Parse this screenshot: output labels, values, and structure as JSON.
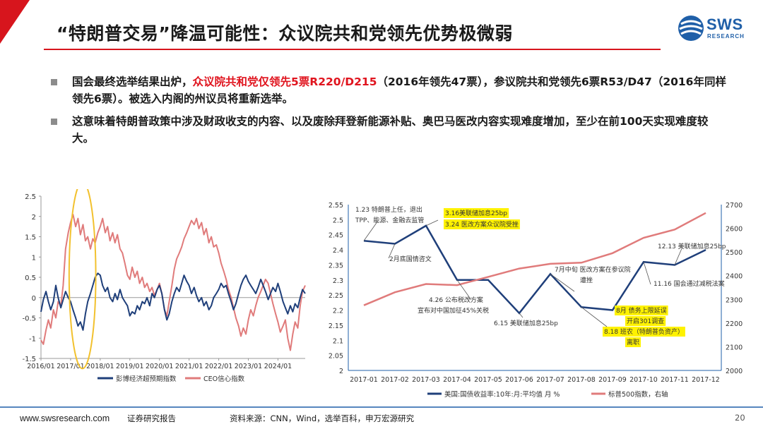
{
  "header": {
    "title": "“特朗普交易”降温可能性：众议院共和党领先优势极微弱",
    "logo_word": "SWS",
    "logo_sub": "RESEARCH",
    "accent_red": "#d7151d",
    "brand_blue": "#1f5fa8"
  },
  "bullets": [
    {
      "pre": "国会最终选举结果出炉，",
      "highlight": "众议院共和党仅领先5票R220/D215",
      "post": "（2016年领先47票），参议院共和党领先6票R53/D47（2016年同样领先6票）。被选入内阁的州议员将重新选举。"
    },
    {
      "pre": "这意味着特朗普政策中涉及财政收支的内容、以及废除拜登新能源补贴、奥巴马医改内容实现难度增加，至少在前100天实现难度较大。",
      "highlight": "",
      "post": ""
    }
  ],
  "chart_data": [
    {
      "type": "line",
      "y_ticks": [
        "2.5",
        "2",
        "1.5",
        "1",
        "0.5",
        "0",
        "-0.5",
        "-1",
        "-1.5"
      ],
      "ylim": [
        -1.5,
        2.5
      ],
      "x_ticks": [
        "2016/01",
        "2017/01",
        "2018/01",
        "2019/01",
        "2020/01",
        "2021/01",
        "2022/01",
        "2023/01",
        "2024/01"
      ],
      "xlim": [
        2016.0,
        2024.92
      ],
      "series": [
        {
          "name": "彭博经济超预期指数",
          "color": "#1f3f7a",
          "points": [
            [
              2016.0,
              -0.35
            ],
            [
              2016.08,
              -0.05
            ],
            [
              2016.17,
              0.15
            ],
            [
              2016.25,
              -0.1
            ],
            [
              2016.33,
              -0.3
            ],
            [
              2016.42,
              -0.1
            ],
            [
              2016.5,
              0.3
            ],
            [
              2016.58,
              0.0
            ],
            [
              2016.67,
              -0.25
            ],
            [
              2016.75,
              -0.05
            ],
            [
              2016.83,
              0.15
            ],
            [
              2016.92,
              0.0
            ],
            [
              2017.0,
              -0.1
            ],
            [
              2017.08,
              -0.3
            ],
            [
              2017.17,
              -0.5
            ],
            [
              2017.25,
              -0.7
            ],
            [
              2017.33,
              -0.6
            ],
            [
              2017.42,
              -0.8
            ],
            [
              2017.5,
              -0.4
            ],
            [
              2017.58,
              -0.1
            ],
            [
              2017.67,
              0.1
            ],
            [
              2017.75,
              0.3
            ],
            [
              2017.83,
              0.5
            ],
            [
              2017.92,
              0.6
            ],
            [
              2018.0,
              0.55
            ],
            [
              2018.08,
              0.3
            ],
            [
              2018.17,
              0.15
            ],
            [
              2018.25,
              0.25
            ],
            [
              2018.33,
              0.0
            ],
            [
              2018.42,
              -0.1
            ],
            [
              2018.5,
              0.1
            ],
            [
              2018.58,
              -0.05
            ],
            [
              2018.67,
              0.2
            ],
            [
              2018.75,
              0.0
            ],
            [
              2018.83,
              -0.1
            ],
            [
              2018.92,
              -0.2
            ],
            [
              2019.0,
              -0.45
            ],
            [
              2019.08,
              -0.35
            ],
            [
              2019.17,
              -0.4
            ],
            [
              2019.25,
              -0.2
            ],
            [
              2019.33,
              -0.3
            ],
            [
              2019.42,
              -0.1
            ],
            [
              2019.5,
              -0.15
            ],
            [
              2019.58,
              0.0
            ],
            [
              2019.67,
              -0.2
            ],
            [
              2019.75,
              0.1
            ],
            [
              2019.83,
              0.0
            ],
            [
              2019.92,
              0.2
            ],
            [
              2020.0,
              0.3
            ],
            [
              2020.08,
              0.1
            ],
            [
              2020.17,
              -0.3
            ],
            [
              2020.25,
              -0.55
            ],
            [
              2020.33,
              -0.4
            ],
            [
              2020.42,
              -0.1
            ],
            [
              2020.5,
              0.1
            ],
            [
              2020.58,
              0.25
            ],
            [
              2020.67,
              0.15
            ],
            [
              2020.75,
              0.35
            ],
            [
              2020.83,
              0.55
            ],
            [
              2020.92,
              0.4
            ],
            [
              2021.0,
              0.3
            ],
            [
              2021.08,
              0.1
            ],
            [
              2021.17,
              0.25
            ],
            [
              2021.25,
              0.05
            ],
            [
              2021.33,
              -0.1
            ],
            [
              2021.42,
              0.0
            ],
            [
              2021.5,
              -0.2
            ],
            [
              2021.58,
              -0.1
            ],
            [
              2021.67,
              -0.3
            ],
            [
              2021.75,
              -0.2
            ],
            [
              2021.83,
              0.0
            ],
            [
              2021.92,
              0.1
            ],
            [
              2022.0,
              0.2
            ],
            [
              2022.08,
              0.35
            ],
            [
              2022.17,
              0.25
            ],
            [
              2022.25,
              0.3
            ],
            [
              2022.33,
              0.1
            ],
            [
              2022.42,
              -0.1
            ],
            [
              2022.5,
              -0.3
            ],
            [
              2022.58,
              -0.15
            ],
            [
              2022.67,
              0.1
            ],
            [
              2022.75,
              0.3
            ],
            [
              2022.83,
              0.45
            ],
            [
              2022.92,
              0.55
            ],
            [
              2023.0,
              0.4
            ],
            [
              2023.08,
              0.3
            ],
            [
              2023.17,
              0.2
            ],
            [
              2023.25,
              0.1
            ],
            [
              2023.33,
              0.25
            ],
            [
              2023.42,
              0.45
            ],
            [
              2023.5,
              0.3
            ],
            [
              2023.58,
              0.15
            ],
            [
              2023.67,
              -0.05
            ],
            [
              2023.75,
              0.1
            ],
            [
              2023.83,
              0.25
            ],
            [
              2023.92,
              0.15
            ],
            [
              2024.0,
              0.35
            ],
            [
              2024.08,
              0.15
            ],
            [
              2024.17,
              -0.1
            ],
            [
              2024.25,
              -0.25
            ],
            [
              2024.33,
              -0.4
            ],
            [
              2024.42,
              -0.2
            ],
            [
              2024.5,
              -0.35
            ],
            [
              2024.58,
              -0.15
            ],
            [
              2024.67,
              -0.25
            ],
            [
              2024.75,
              0.0
            ],
            [
              2024.83,
              0.2
            ],
            [
              2024.92,
              0.1
            ]
          ]
        },
        {
          "name": "CEO信心指数",
          "color": "#e07b7b",
          "points": [
            [
              2016.0,
              -1.05
            ],
            [
              2016.08,
              -1.15
            ],
            [
              2016.17,
              -0.8
            ],
            [
              2016.25,
              -0.55
            ],
            [
              2016.33,
              -0.75
            ],
            [
              2016.42,
              -0.3
            ],
            [
              2016.5,
              -0.5
            ],
            [
              2016.58,
              -0.1
            ],
            [
              2016.67,
              -0.2
            ],
            [
              2016.75,
              0.3
            ],
            [
              2016.83,
              1.2
            ],
            [
              2016.92,
              1.6
            ],
            [
              2017.0,
              1.85
            ],
            [
              2017.08,
              2.05
            ],
            [
              2017.17,
              1.75
            ],
            [
              2017.25,
              1.95
            ],
            [
              2017.33,
              1.55
            ],
            [
              2017.42,
              1.8
            ],
            [
              2017.5,
              1.4
            ],
            [
              2017.58,
              1.5
            ],
            [
              2017.67,
              1.2
            ],
            [
              2017.75,
              1.45
            ],
            [
              2017.83,
              1.35
            ],
            [
              2017.92,
              1.6
            ],
            [
              2018.0,
              1.75
            ],
            [
              2018.08,
              1.95
            ],
            [
              2018.17,
              1.6
            ],
            [
              2018.25,
              1.75
            ],
            [
              2018.33,
              1.4
            ],
            [
              2018.42,
              1.6
            ],
            [
              2018.5,
              1.35
            ],
            [
              2018.58,
              1.55
            ],
            [
              2018.67,
              1.2
            ],
            [
              2018.75,
              1.1
            ],
            [
              2018.83,
              0.85
            ],
            [
              2018.92,
              0.55
            ],
            [
              2019.0,
              0.45
            ],
            [
              2019.08,
              0.75
            ],
            [
              2019.17,
              0.5
            ],
            [
              2019.25,
              0.65
            ],
            [
              2019.33,
              0.35
            ],
            [
              2019.42,
              0.5
            ],
            [
              2019.5,
              0.25
            ],
            [
              2019.58,
              0.35
            ],
            [
              2019.67,
              0.15
            ],
            [
              2019.75,
              0.25
            ],
            [
              2019.83,
              0.05
            ],
            [
              2019.92,
              0.2
            ],
            [
              2020.0,
              0.35
            ],
            [
              2020.08,
              0.1
            ],
            [
              2020.17,
              -0.3
            ],
            [
              2020.25,
              -0.45
            ],
            [
              2020.33,
              -0.1
            ],
            [
              2020.42,
              0.3
            ],
            [
              2020.5,
              0.7
            ],
            [
              2020.58,
              0.95
            ],
            [
              2020.67,
              1.1
            ],
            [
              2020.75,
              1.25
            ],
            [
              2020.83,
              1.45
            ],
            [
              2020.92,
              1.6
            ],
            [
              2021.0,
              1.75
            ],
            [
              2021.08,
              1.9
            ],
            [
              2021.17,
              1.8
            ],
            [
              2021.25,
              1.95
            ],
            [
              2021.33,
              1.7
            ],
            [
              2021.42,
              1.85
            ],
            [
              2021.5,
              1.55
            ],
            [
              2021.58,
              1.7
            ],
            [
              2021.67,
              1.35
            ],
            [
              2021.75,
              1.5
            ],
            [
              2021.83,
              1.25
            ],
            [
              2021.92,
              1.3
            ],
            [
              2022.0,
              1.1
            ],
            [
              2022.08,
              0.85
            ],
            [
              2022.17,
              0.65
            ],
            [
              2022.25,
              0.45
            ],
            [
              2022.33,
              0.2
            ],
            [
              2022.42,
              0.0
            ],
            [
              2022.5,
              -0.25
            ],
            [
              2022.58,
              -0.5
            ],
            [
              2022.67,
              -0.7
            ],
            [
              2022.75,
              -0.95
            ],
            [
              2022.83,
              -0.75
            ],
            [
              2022.92,
              -0.9
            ],
            [
              2023.0,
              -0.55
            ],
            [
              2023.08,
              -0.3
            ],
            [
              2023.17,
              -0.45
            ],
            [
              2023.25,
              -0.2
            ],
            [
              2023.33,
              0.0
            ],
            [
              2023.42,
              0.15
            ],
            [
              2023.5,
              0.3
            ],
            [
              2023.58,
              0.45
            ],
            [
              2023.67,
              0.35
            ],
            [
              2023.75,
              0.1
            ],
            [
              2023.83,
              -0.15
            ],
            [
              2023.92,
              -0.4
            ],
            [
              2024.0,
              -0.6
            ],
            [
              2024.08,
              -0.85
            ],
            [
              2024.17,
              -0.7
            ],
            [
              2024.25,
              -0.55
            ],
            [
              2024.33,
              -1.0
            ],
            [
              2024.42,
              -1.3
            ],
            [
              2024.5,
              -0.9
            ],
            [
              2024.58,
              -0.6
            ],
            [
              2024.67,
              -0.75
            ],
            [
              2024.75,
              -0.2
            ],
            [
              2024.83,
              0.15
            ],
            [
              2024.92,
              0.3
            ]
          ]
        }
      ],
      "highlight_ellipse": {
        "x_center": 2017.4,
        "x_radius": 0.45,
        "y_center": 0.55,
        "y_radius": 2.3,
        "color": "#f2c12e"
      },
      "legend_position": "bottom"
    },
    {
      "type": "line",
      "categories": [
        "2017-01",
        "2017-02",
        "2017-03",
        "2017-04",
        "2017-05",
        "2017-06",
        "2017-07",
        "2017-08",
        "2017-09",
        "2017-10",
        "2017-11",
        "2017-12"
      ],
      "left_axis": {
        "ticks": [
          "2.55",
          "2.5",
          "2.45",
          "2.4",
          "2.35",
          "2.3",
          "2.25",
          "2.2",
          "2.15",
          "2.1",
          "2.05",
          "2"
        ],
        "ylim": [
          2.0,
          2.55
        ]
      },
      "right_axis": {
        "ticks": [
          "2700",
          "2600",
          "2500",
          "2400",
          "2300",
          "2200",
          "2100",
          "2000"
        ],
        "ylim": [
          2000,
          2700
        ]
      },
      "series": [
        {
          "name": "美国:国债收益率:10年:月:平均值 月 %",
          "axis": "left",
          "color": "#1f3f7a",
          "values": [
            2.43,
            2.42,
            2.48,
            2.3,
            2.3,
            2.19,
            2.32,
            2.21,
            2.2,
            2.36,
            2.35,
            2.4
          ]
        },
        {
          "name": "标普500指数，右轴",
          "axis": "right",
          "color": "#e07b7b",
          "values": [
            2275,
            2330,
            2365,
            2360,
            2395,
            2430,
            2450,
            2455,
            2495,
            2560,
            2595,
            2665
          ]
        }
      ],
      "annotations": [
        {
          "text": "1.23 特朗普上任，退出",
          "highlight": false
        },
        {
          "text": "TPP、能源、金融去监管",
          "highlight": false
        },
        {
          "text": "3.16美联储加息25bp",
          "highlight": true
        },
        {
          "text": "3.24 医改方案众议院受挫",
          "highlight": true
        },
        {
          "text": "2月底国情咨文",
          "highlight": false
        },
        {
          "text": "4.26 公布税改方案",
          "highlight": false
        },
        {
          "text": "宣布对中国加征45%关税",
          "highlight": false
        },
        {
          "text": "6.15 美联储加息25bp",
          "highlight": false
        },
        {
          "text": "7月中旬 医改方案在参议院",
          "highlight": false
        },
        {
          "text": "遭挫",
          "highlight": false
        },
        {
          "text": "8月 债务上限延误",
          "highlight": true
        },
        {
          "text": "开启301调查",
          "highlight": true
        },
        {
          "text": "8.18 班农（特朗普负资产）",
          "highlight": true
        },
        {
          "text": "离职",
          "highlight": true
        },
        {
          "text": "12.13 美联储加息25bp",
          "highlight": false
        },
        {
          "text": "11.16 国会通过减税法案",
          "highlight": false
        }
      ],
      "legend_position": "bottom"
    }
  ],
  "footer": {
    "site": "www.swsresearch.com",
    "kind": "证券研究报告",
    "source": "资料来源：CNN，Wind，选举百科，申万宏源研究",
    "page": "20"
  }
}
